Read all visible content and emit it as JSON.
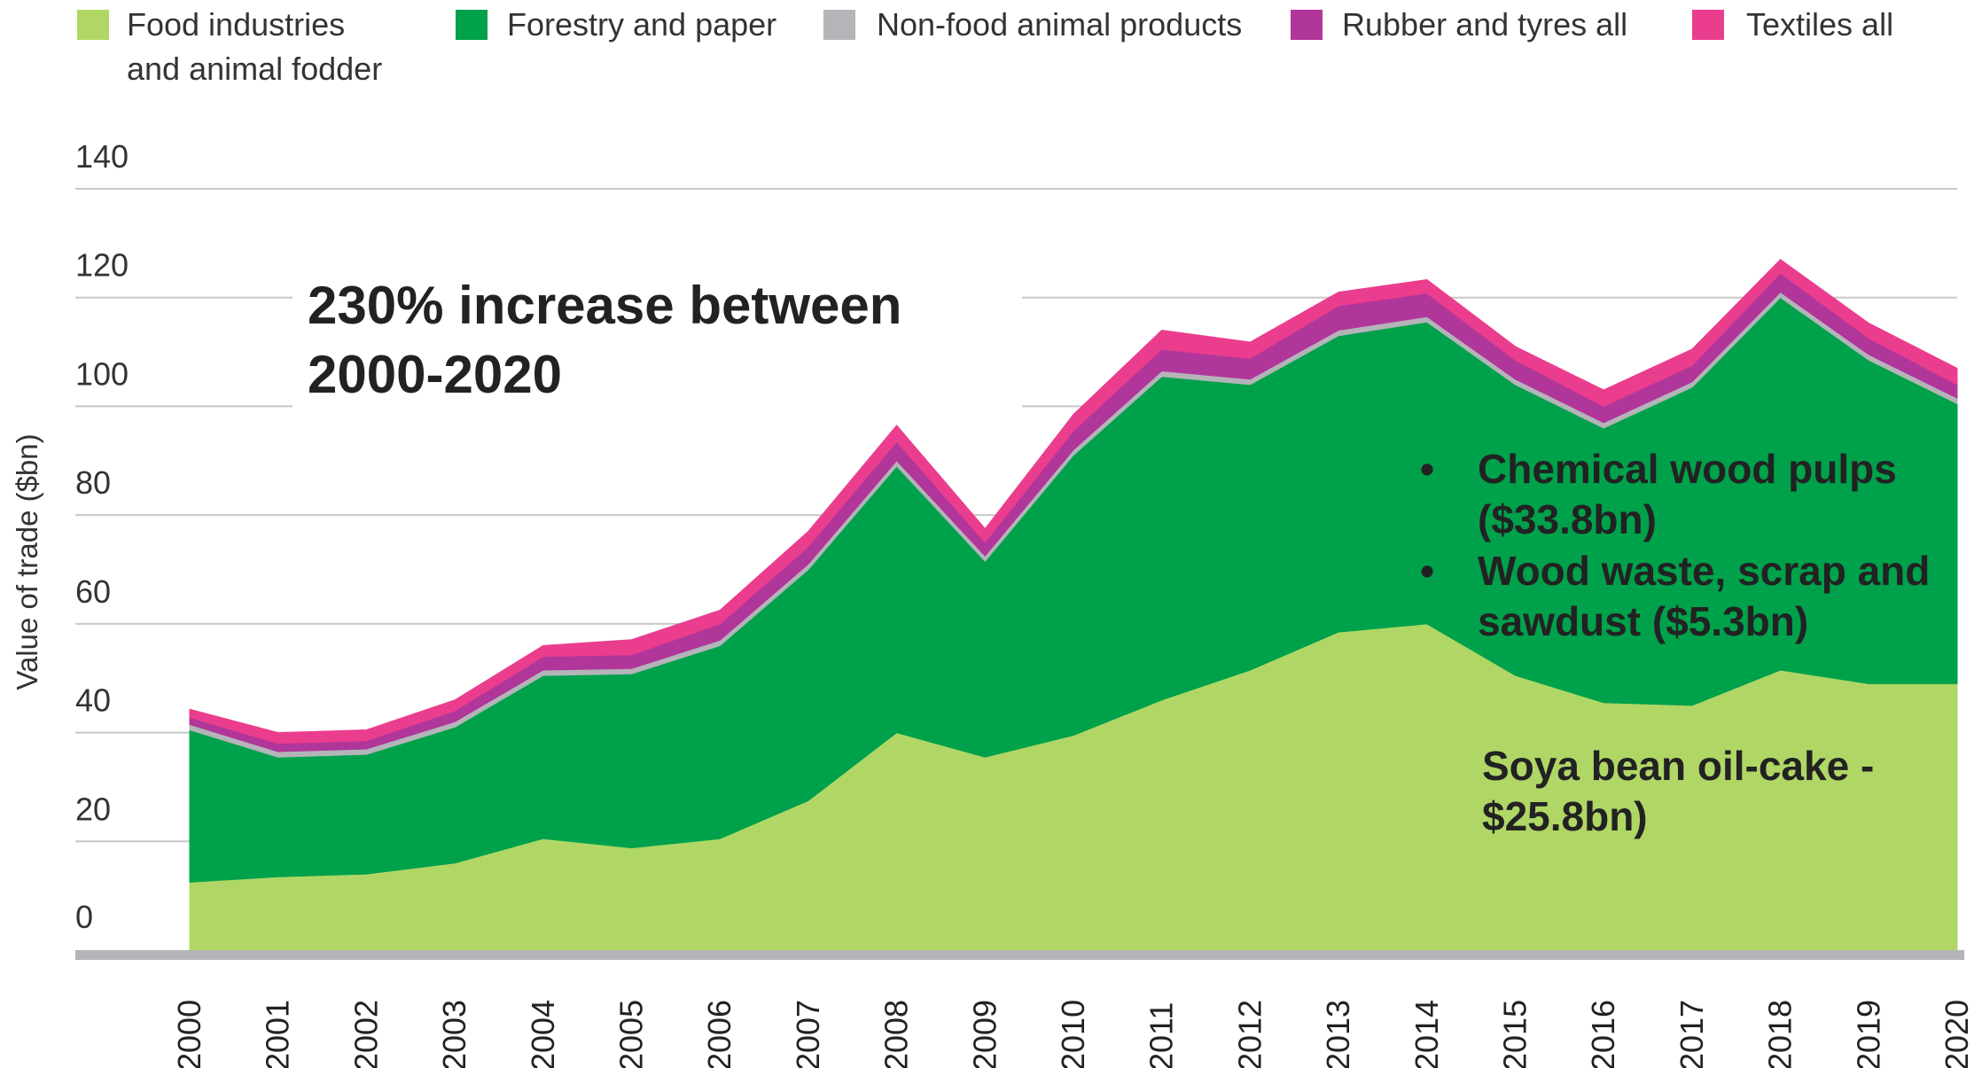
{
  "chart_data": {
    "type": "area",
    "stacked": true,
    "ylabel": "Value of trade ($bn)",
    "ylim": [
      0,
      140
    ],
    "yticks": [
      0,
      20,
      40,
      60,
      80,
      100,
      120,
      140
    ],
    "grid": true,
    "legend_position": "top",
    "x": [
      "2000",
      "2001",
      "2002",
      "2003",
      "2004",
      "2005",
      "2006",
      "2007",
      "2008",
      "2009",
      "2010",
      "2011",
      "2012",
      "2013",
      "2014",
      "2015",
      "2016",
      "2017",
      "2018",
      "2019",
      "2020"
    ],
    "series": [
      {
        "name": "Food industries and animal fodder",
        "legend_lines": [
          "Food industries",
          "and animal fodder"
        ],
        "color": "#b0d766",
        "values": [
          12.5,
          13.5,
          14,
          16,
          20.5,
          18.8,
          20.5,
          27.5,
          40,
          35.5,
          39.5,
          46,
          51.5,
          58.5,
          60,
          50.5,
          45.5,
          45,
          51.5,
          49,
          49
        ]
      },
      {
        "name": "Forestry and paper",
        "legend_lines": [
          "Forestry and paper"
        ],
        "color": "#00a14b",
        "values": [
          28,
          22,
          22,
          25,
          30,
          32,
          35.5,
          42.5,
          49,
          36,
          51.5,
          59.5,
          52.5,
          54.5,
          55.5,
          53.5,
          50.5,
          58.5,
          68.5,
          59.5,
          51.5
        ]
      },
      {
        "name": "Non-food animal products",
        "legend_lines": [
          "Non-food animal products"
        ],
        "color": "#b4b4b9",
        "values": [
          1,
          1,
          1,
          1,
          1,
          1,
          1,
          1,
          1,
          1,
          1,
          1,
          1,
          1,
          1,
          1,
          1,
          1,
          1,
          1,
          1
        ]
      },
      {
        "name": "Rubber and tyres all",
        "legend_lines": [
          "Rubber and tyres all"
        ],
        "color": "#b0369a",
        "values": [
          1.3,
          1.5,
          1.5,
          2,
          2.5,
          2.5,
          3,
          3.2,
          3.5,
          2.5,
          3.5,
          4,
          3.8,
          4.5,
          4.3,
          3.5,
          3,
          3,
          3.5,
          3,
          2.5
        ]
      },
      {
        "name": "Textiles all",
        "legend_lines": [
          "Textiles all"
        ],
        "color": "#eb3d8e",
        "values": [
          1.5,
          2,
          2,
          2,
          2,
          2.8,
          2.5,
          2.8,
          3,
          2.5,
          3,
          3.5,
          3,
          2.5,
          2.5,
          2.5,
          3,
          3,
          2.5,
          2.8,
          3
        ]
      }
    ],
    "annotations": {
      "headline": [
        "230% increase between",
        "2000-2020"
      ],
      "forestry_notes": [
        {
          "bullet": "•",
          "lines": [
            "Chemical wood pulps",
            "($33.8bn)"
          ]
        },
        {
          "bullet": "•",
          "lines": [
            "Wood waste, scrap and",
            "sawdust ($5.3bn)"
          ]
        }
      ],
      "food_note": [
        "Soya bean oil-cake -",
        "$25.8bn)"
      ]
    }
  }
}
